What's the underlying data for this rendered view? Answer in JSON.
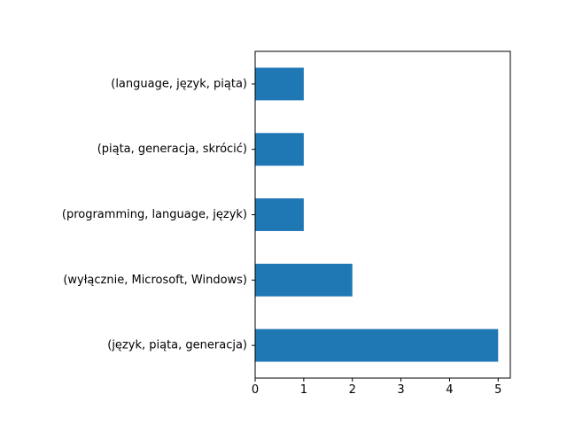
{
  "chart_data": {
    "type": "bar",
    "orientation": "horizontal",
    "categories": [
      "(język, piąta, generacja)",
      "(wyłącznie, Microsoft, Windows)",
      "(programming, language, język)",
      "(piąta, generacja, skrócić)",
      "(language, język, piąta)"
    ],
    "values": [
      5,
      2,
      1,
      1,
      1
    ],
    "xlim": [
      0,
      5.25
    ],
    "xticks": [
      0,
      1,
      2,
      3,
      4,
      5
    ],
    "title": "",
    "xlabel": "",
    "ylabel": "",
    "grid": false,
    "bar_color": "#1f77b4"
  }
}
